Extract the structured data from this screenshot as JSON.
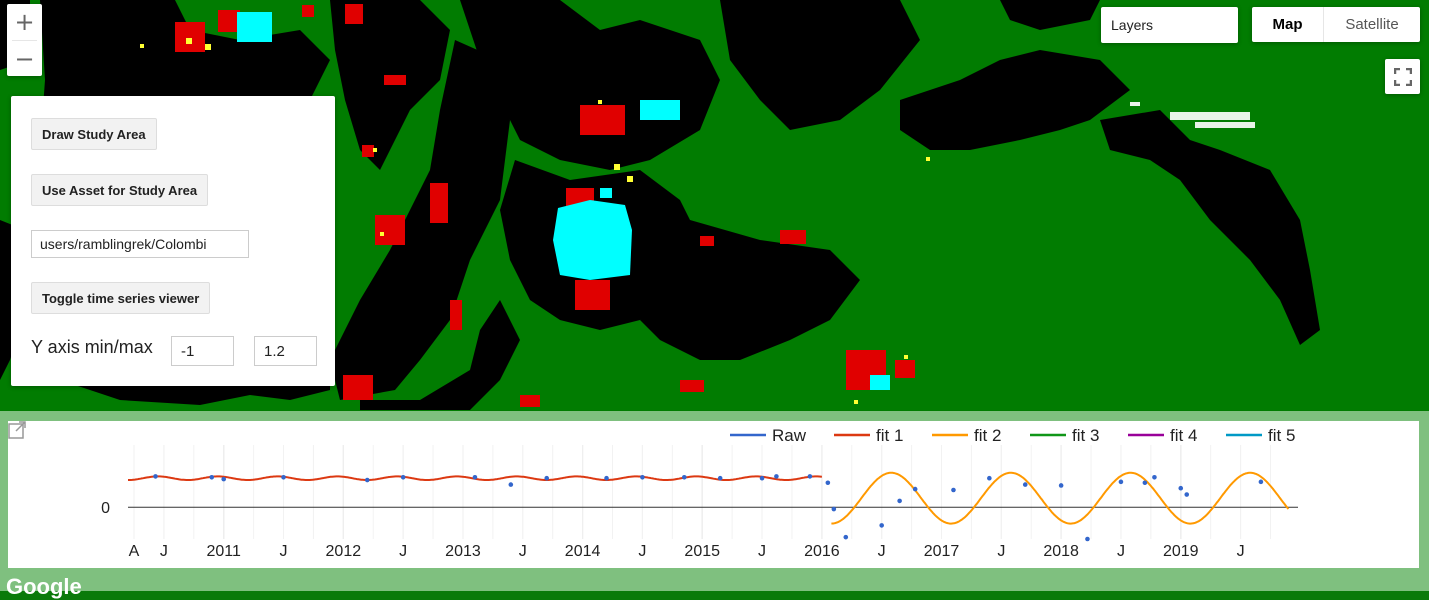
{
  "map": {
    "zoom_in": "+",
    "zoom_out": "−",
    "layers_label": "Layers",
    "map_type_map": "Map",
    "map_type_satellite": "Satellite",
    "attribution": "Google",
    "icons": [
      "plus-icon",
      "minus-icon",
      "fullscreen-icon",
      "popout-icon"
    ]
  },
  "panel": {
    "draw_button": "Draw Study Area",
    "asset_button": "Use Asset for Study Area",
    "asset_path": "users/ramblingrek/Colombi",
    "toggle_button": "Toggle time series viewer",
    "y_axis_label": "Y axis min/max",
    "y_min": "-1",
    "y_max": "1.2"
  },
  "colors": {
    "map_green": "#017c01",
    "map_black": "#000000",
    "change_red": "#e00000",
    "change_cyan": "#00ffff",
    "change_yellow": "#ffff33",
    "raw": "#3366cc",
    "fit1": "#dc3912",
    "fit2": "#ff9900",
    "fit3": "#109618",
    "fit4": "#990099",
    "fit5": "#0099c6"
  },
  "chart_data": {
    "type": "line",
    "legend": [
      {
        "name": "Raw",
        "color": "#3366cc"
      },
      {
        "name": "fit 1",
        "color": "#dc3912"
      },
      {
        "name": "fit 2",
        "color": "#ff9900"
      },
      {
        "name": "fit 3",
        "color": "#109618"
      },
      {
        "name": "fit 4",
        "color": "#990099"
      },
      {
        "name": "fit 5",
        "color": "#0099c6"
      }
    ],
    "legend_position": "top-right",
    "y_ticks": [
      "0"
    ],
    "x_ticks": [
      "A",
      "J",
      "2011",
      "J",
      "2012",
      "J",
      "2013",
      "J",
      "2014",
      "J",
      "2015",
      "J",
      "2016",
      "J",
      "2017",
      "J",
      "2018",
      "J",
      "2019",
      "J"
    ],
    "x_range": [
      2010.2,
      2019.98
    ],
    "y_range": [
      -0.35,
      0.62
    ],
    "fit1": {
      "start": 2010.2,
      "end": 2016.0,
      "level": 0.32,
      "amplitude": 0.02,
      "period_years": 0.5
    },
    "fit2": {
      "start": 2016.08,
      "end": 2019.9,
      "level": 0.1,
      "amplitude": 0.28,
      "period_years": 1.0
    },
    "raw_points": [
      [
        2010.43,
        0.34
      ],
      [
        2010.9,
        0.33
      ],
      [
        2011.0,
        0.31
      ],
      [
        2011.5,
        0.33
      ],
      [
        2012.2,
        0.3
      ],
      [
        2012.5,
        0.33
      ],
      [
        2013.1,
        0.33
      ],
      [
        2013.4,
        0.25
      ],
      [
        2013.7,
        0.32
      ],
      [
        2014.2,
        0.32
      ],
      [
        2014.5,
        0.33
      ],
      [
        2014.85,
        0.33
      ],
      [
        2015.15,
        0.32
      ],
      [
        2015.5,
        0.32
      ],
      [
        2015.62,
        0.34
      ],
      [
        2015.9,
        0.34
      ],
      [
        2016.05,
        0.27
      ],
      [
        2016.1,
        -0.02
      ],
      [
        2016.2,
        -0.33
      ],
      [
        2016.5,
        -0.2
      ],
      [
        2016.65,
        0.07
      ],
      [
        2016.78,
        0.2
      ],
      [
        2017.1,
        0.19
      ],
      [
        2017.4,
        0.32
      ],
      [
        2017.7,
        0.25
      ],
      [
        2018.0,
        0.24
      ],
      [
        2018.22,
        -0.35
      ],
      [
        2018.5,
        0.28
      ],
      [
        2018.7,
        0.27
      ],
      [
        2018.78,
        0.33
      ],
      [
        2019.0,
        0.21
      ],
      [
        2019.05,
        0.14
      ],
      [
        2019.67,
        0.28
      ]
    ]
  }
}
